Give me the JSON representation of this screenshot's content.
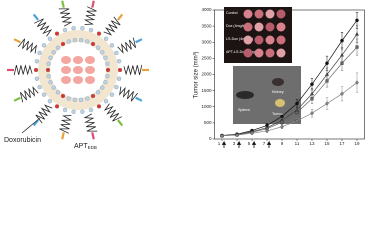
{
  "illustration": {
    "drug_label": "Doxorubicin",
    "aptamer_label": "APT",
    "aptamer_subscript": "EDB"
  },
  "chart_data": {
    "type": "line",
    "ylabel": "Tumor size (mm³)",
    "x": [
      1,
      3,
      5,
      7,
      9,
      11,
      13,
      15,
      17,
      19
    ],
    "series": [
      {
        "name": "Control",
        "color": "#111111",
        "marker": "circle",
        "values": [
          110,
          150,
          260,
          420,
          700,
          1100,
          1700,
          2350,
          3050,
          3680
        ],
        "errors": [
          20,
          30,
          40,
          60,
          90,
          130,
          180,
          220,
          260,
          250
        ]
      },
      {
        "name": "Dox (4mg/kg)",
        "color": "#444444",
        "marker": "triangle",
        "values": [
          100,
          140,
          230,
          350,
          580,
          900,
          1400,
          2000,
          2600,
          3250
        ],
        "errors": [
          20,
          25,
          35,
          50,
          80,
          120,
          160,
          200,
          230,
          260
        ]
      },
      {
        "name": "LS-Dox (4mg/kg)",
        "color": "#666666",
        "marker": "square",
        "values": [
          100,
          130,
          210,
          320,
          520,
          820,
          1250,
          1800,
          2350,
          2850
        ],
        "errors": [
          20,
          25,
          30,
          45,
          70,
          110,
          150,
          190,
          220,
          250
        ]
      },
      {
        "name": "APT-LS-Dox (4mg/kg)",
        "color": "#888888",
        "marker": "diamond",
        "values": [
          100,
          120,
          180,
          250,
          380,
          560,
          800,
          1100,
          1400,
          1750
        ],
        "errors": [
          15,
          20,
          30,
          40,
          60,
          80,
          120,
          180,
          220,
          300
        ]
      }
    ],
    "xlim": [
      0,
      20
    ],
    "xticks": [
      1,
      3,
      5,
      7,
      9,
      11,
      13,
      15,
      17,
      19
    ],
    "ylim": [
      0,
      4000
    ],
    "yticks": [
      0,
      500,
      1000,
      1500,
      2000,
      2500,
      3000,
      3500,
      4000
    ],
    "organs": [
      "Spleen",
      "Kidney",
      "Tumor"
    ]
  }
}
